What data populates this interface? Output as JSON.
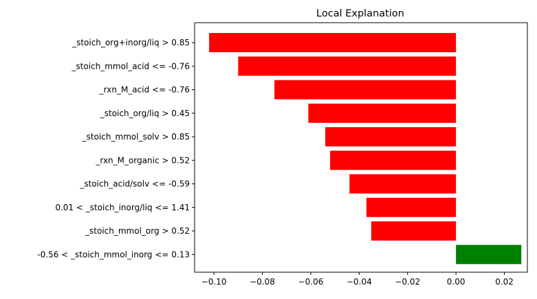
{
  "chart_data": {
    "type": "bar",
    "orientation": "horizontal",
    "title": "Local Explanation",
    "xlabel": "",
    "ylabel": "",
    "categories": [
      "_stoich_org+inorg/liq > 0.85",
      "_stoich_mmol_acid <= -0.76",
      "_rxn_M_acid <= -0.76",
      "_stoich_org/liq > 0.45",
      "_stoich_mmol_solv > 0.85",
      "_rxn_M_organic > 0.52",
      "_stoich_acid/solv <= -0.59",
      "0.01 < _stoich_inorg/liq <= 1.41",
      "_stoich_mmol_org > 0.52",
      "-0.56 < _stoich_mmol_inorg <= 0.13"
    ],
    "values": [
      -0.102,
      -0.09,
      -0.075,
      -0.061,
      -0.054,
      -0.052,
      -0.044,
      -0.037,
      -0.035,
      0.027
    ],
    "xlim": [
      -0.108,
      0.0295
    ],
    "xticks": [
      "−0.10",
      "−0.08",
      "−0.06",
      "−0.04",
      "−0.02",
      "0.00",
      "0.02"
    ],
    "xtick_values": [
      -0.1,
      -0.08,
      -0.06,
      -0.04,
      -0.02,
      0.0,
      0.02
    ],
    "colors": {
      "negative": "#ff0000",
      "positive": "#008000"
    },
    "grid": false,
    "legend": "none"
  }
}
